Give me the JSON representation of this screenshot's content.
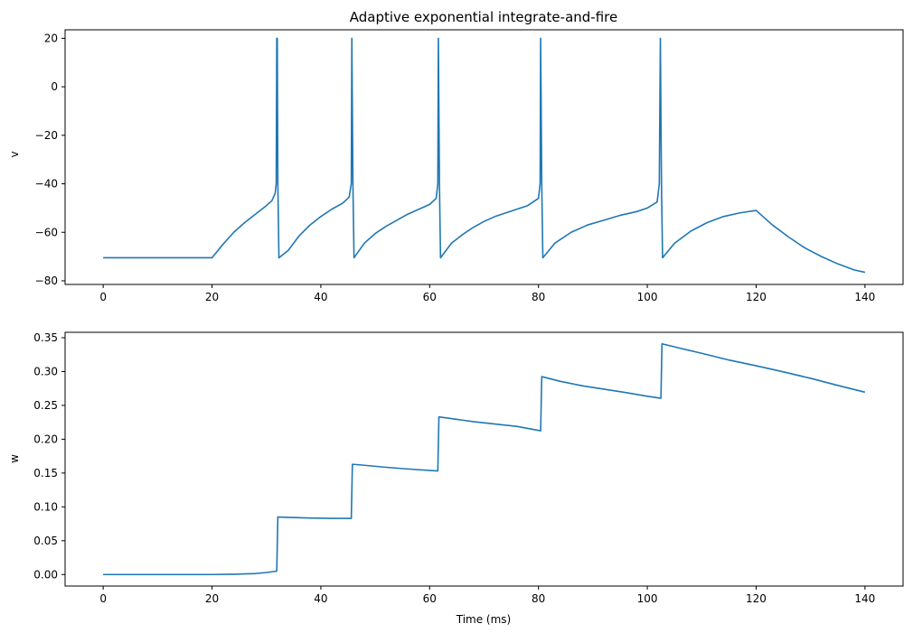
{
  "chart_data": [
    {
      "type": "line",
      "title": "Adaptive exponential integrate-and-fire",
      "xlabel": "",
      "ylabel": "v",
      "xlim": [
        -7,
        147
      ],
      "ylim": [
        -81.5,
        23.5
      ],
      "xticks": [
        0,
        20,
        40,
        60,
        80,
        100,
        120,
        140
      ],
      "yticks": [
        -80,
        -60,
        -40,
        -20,
        0,
        20
      ],
      "grid": false,
      "color": "#1f77b4",
      "series": [
        {
          "x": [
            0,
            20,
            22,
            24,
            26,
            28,
            30,
            31,
            31.6,
            31.8,
            31.9,
            32.0,
            32.1,
            32.3,
            34,
            36,
            38,
            40,
            42,
            44,
            45.2,
            45.6,
            45.7,
            45.9,
            46.1,
            48,
            50,
            52,
            54,
            56,
            58,
            60,
            61.2,
            61.5,
            61.6,
            61.8,
            62.0,
            64,
            66,
            68,
            70,
            72,
            74,
            76,
            78,
            80,
            80.3,
            80.4,
            80.6,
            80.8,
            83,
            86,
            89,
            92,
            95,
            98,
            100,
            101.8,
            102.2,
            102.4,
            102.6,
            102.8,
            105,
            108,
            111,
            114,
            117,
            120,
            123,
            126,
            129,
            132,
            135,
            138,
            140
          ],
          "y": [
            -70.5,
            -70.5,
            -65,
            -60,
            -56,
            -52.5,
            -49,
            -47,
            -44,
            -40,
            20,
            20,
            -40,
            -70.5,
            -67.5,
            -61.5,
            -57,
            -53.5,
            -50.5,
            -48,
            -45.5,
            -40,
            20,
            -40,
            -70.5,
            -64.5,
            -60.5,
            -57.5,
            -55,
            -52.5,
            -50.5,
            -48.5,
            -46,
            -40,
            20,
            -40,
            -70.5,
            -64.5,
            -61,
            -58,
            -55.5,
            -53.5,
            -52,
            -50.5,
            -49,
            -46,
            -40,
            20,
            -40,
            -70.5,
            -64.5,
            -60,
            -57,
            -55,
            -53,
            -51.5,
            -50,
            -47.5,
            -40,
            20,
            -40,
            -70.5,
            -64.5,
            -59.5,
            -56,
            -53.5,
            -52,
            -51,
            -57,
            -62,
            -66.5,
            -70,
            -73,
            -75.5,
            -76.5
          ]
        }
      ]
    },
    {
      "type": "line",
      "title": "",
      "xlabel": "Time (ms)",
      "ylabel": "w",
      "xlim": [
        -7,
        147
      ],
      "ylim": [
        -0.017,
        0.358
      ],
      "xticks": [
        0,
        20,
        40,
        60,
        80,
        100,
        120,
        140
      ],
      "yticks": [
        0.0,
        0.05,
        0.1,
        0.15,
        0.2,
        0.25,
        0.3,
        0.35
      ],
      "ytick_labels": [
        "0.00",
        "0.05",
        "0.10",
        "0.15",
        "0.20",
        "0.25",
        "0.30",
        "0.35"
      ],
      "grid": false,
      "color": "#1f77b4",
      "series": [
        {
          "x": [
            0,
            20,
            24,
            28,
            30,
            31.9,
            32.1,
            34,
            38,
            42,
            45.6,
            45.8,
            48,
            52,
            56,
            61.5,
            61.7,
            64,
            68,
            72,
            76,
            80.4,
            80.6,
            84,
            88,
            92,
            96,
            100,
            102.5,
            102.7,
            106,
            110,
            115,
            120,
            125,
            130,
            135,
            140
          ],
          "y": [
            0,
            0,
            0.0005,
            0.0015,
            0.003,
            0.005,
            0.085,
            0.0845,
            0.0835,
            0.083,
            0.083,
            0.163,
            0.1615,
            0.1585,
            0.156,
            0.153,
            0.233,
            0.2305,
            0.226,
            0.2225,
            0.219,
            0.2125,
            0.2925,
            0.2855,
            0.279,
            0.274,
            0.269,
            0.2635,
            0.2605,
            0.341,
            0.3345,
            0.327,
            0.317,
            0.3085,
            0.2995,
            0.29,
            0.2795,
            0.2695
          ]
        }
      ]
    }
  ]
}
